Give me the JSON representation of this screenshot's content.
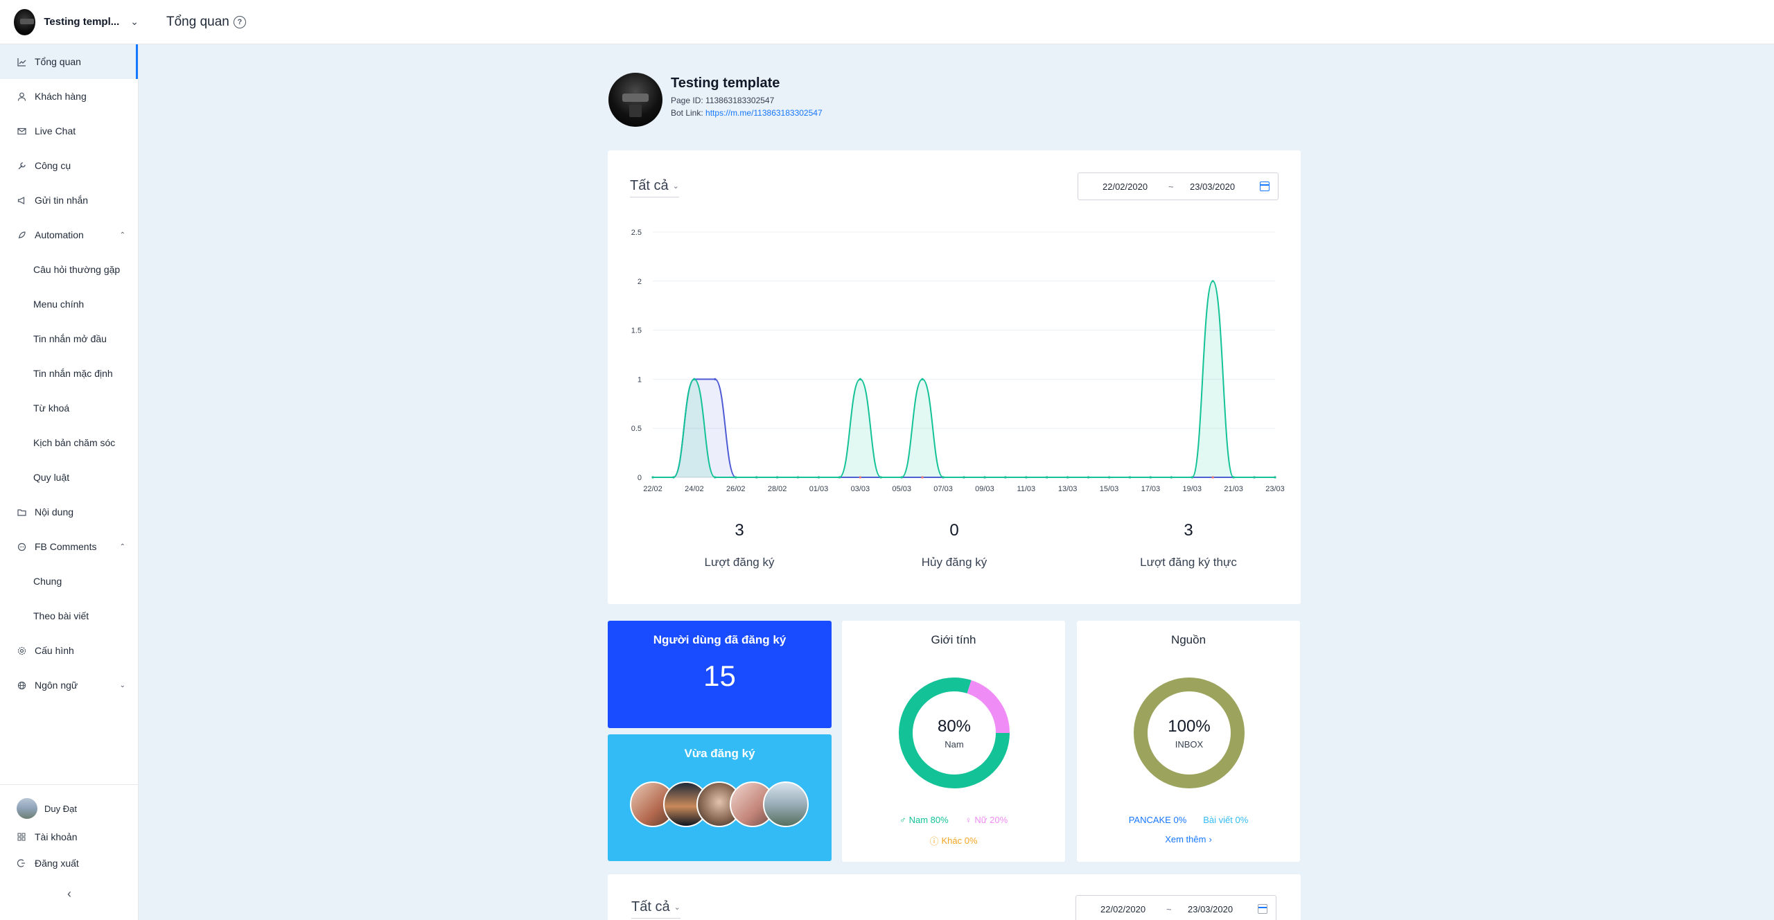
{
  "header": {
    "brand_name": "Testing templ...",
    "page_title": "Tổng quan"
  },
  "sidebar": {
    "items": [
      {
        "label": "Tổng quan",
        "icon": "chart-icon",
        "active": true
      },
      {
        "label": "Khách hàng",
        "icon": "user-icon"
      },
      {
        "label": "Live Chat",
        "icon": "mail-icon"
      },
      {
        "label": "Công cụ",
        "icon": "wrench-icon"
      },
      {
        "label": "Gửi tin nhắn",
        "icon": "megaphone-icon"
      },
      {
        "label": "Automation",
        "icon": "rocket-icon",
        "caret": "up"
      }
    ],
    "automation_sub": [
      "Câu hỏi thường gặp",
      "Menu chính",
      "Tin nhắn mở đầu",
      "Tin nhắn mặc định",
      "Từ khoá",
      "Kịch bản chăm sóc",
      "Quy luật"
    ],
    "items2": [
      {
        "label": "Nội dung",
        "icon": "folder-icon"
      },
      {
        "label": "FB Comments",
        "icon": "comment-icon",
        "caret": "up"
      }
    ],
    "fb_sub": [
      "Chung",
      "Theo bài viết"
    ],
    "items3": [
      {
        "label": "Cấu hình",
        "icon": "gear-icon"
      },
      {
        "label": "Ngôn ngữ",
        "icon": "globe-icon",
        "caret": "down"
      }
    ],
    "footer": {
      "user_name": "Duy Đạt",
      "account": "Tài khoản",
      "logout": "Đăng xuất"
    }
  },
  "profile": {
    "name": "Testing template",
    "page_id_label": "Page ID:",
    "page_id": "113863183302547",
    "bot_link_label": "Bot Link:",
    "bot_link": "https://m.me/113863183302547"
  },
  "filter": {
    "select": "Tất cả",
    "date_from": "22/02/2020",
    "date_sep": "~",
    "date_to": "23/03/2020"
  },
  "chart_data": {
    "type": "area",
    "x": [
      "22/02",
      "23/02",
      "24/02",
      "25/02",
      "26/02",
      "27/02",
      "28/02",
      "29/02",
      "01/03",
      "02/03",
      "03/03",
      "04/03",
      "05/03",
      "06/03",
      "07/03",
      "08/03",
      "09/03",
      "10/03",
      "11/03",
      "12/03",
      "13/03",
      "14/03",
      "15/03",
      "16/03",
      "17/03",
      "18/03",
      "19/03",
      "20/03",
      "21/03",
      "22/03",
      "23/03"
    ],
    "x_ticks": [
      "22/02",
      "24/02",
      "26/02",
      "28/02",
      "01/03",
      "03/03",
      "05/03",
      "07/03",
      "09/03",
      "11/03",
      "13/03",
      "15/03",
      "17/03",
      "19/03",
      "21/03",
      "23/03"
    ],
    "y_ticks": [
      "0",
      "0.5",
      "1",
      "1.5",
      "2",
      "2.5"
    ],
    "ylim": [
      0,
      2.5
    ],
    "series": [
      {
        "values": [
          0,
          0,
          1,
          1,
          0,
          0,
          0,
          0,
          0,
          0,
          0,
          0,
          0,
          0,
          0,
          0,
          0,
          0,
          0,
          0,
          0,
          0,
          0,
          0,
          0,
          0,
          0,
          0,
          0,
          0,
          0
        ],
        "color": "#4f5bd5"
      },
      {
        "values": [
          0,
          0,
          1,
          0,
          0,
          0,
          0,
          0,
          0,
          0,
          1,
          0,
          0,
          1,
          0,
          0,
          0,
          0,
          0,
          0,
          0,
          0,
          0,
          0,
          0,
          0,
          0,
          2,
          0,
          0,
          0
        ],
        "color": "#13c296"
      }
    ]
  },
  "stats": [
    {
      "value": "3",
      "label": "Lượt đăng ký"
    },
    {
      "value": "0",
      "label": "Hủy đăng ký"
    },
    {
      "value": "3",
      "label": "Lượt đăng ký thực"
    }
  ],
  "registered": {
    "title": "Người dùng đã đăng ký",
    "count": "15"
  },
  "recent": {
    "title": "Vừa đăng ký"
  },
  "gender": {
    "title": "Giới tính",
    "center_pct": "80%",
    "center_label": "Nam",
    "male": "Nam 80%",
    "female": "Nữ 20%",
    "other": "Khác 0%",
    "male_share": 0.8,
    "female_share": 0.2,
    "colors": {
      "male": "#13c296",
      "female": "#f08cf5",
      "other": "#f5a623"
    }
  },
  "source": {
    "title": "Nguồn",
    "center_pct": "100%",
    "center_label": "INBOX",
    "pancake": "PANCAKE 0%",
    "post": "Bài viết 0%",
    "more": "Xem thêm",
    "inbox_share": 1.0,
    "colors": {
      "inbox": "#9ba35c",
      "pancake": "#1677ff",
      "post": "#33bbf5"
    }
  },
  "bottom_filter": {
    "select": "Tất cả",
    "date_from": "22/02/2020",
    "date_sep": "~",
    "date_to": "23/03/2020"
  }
}
